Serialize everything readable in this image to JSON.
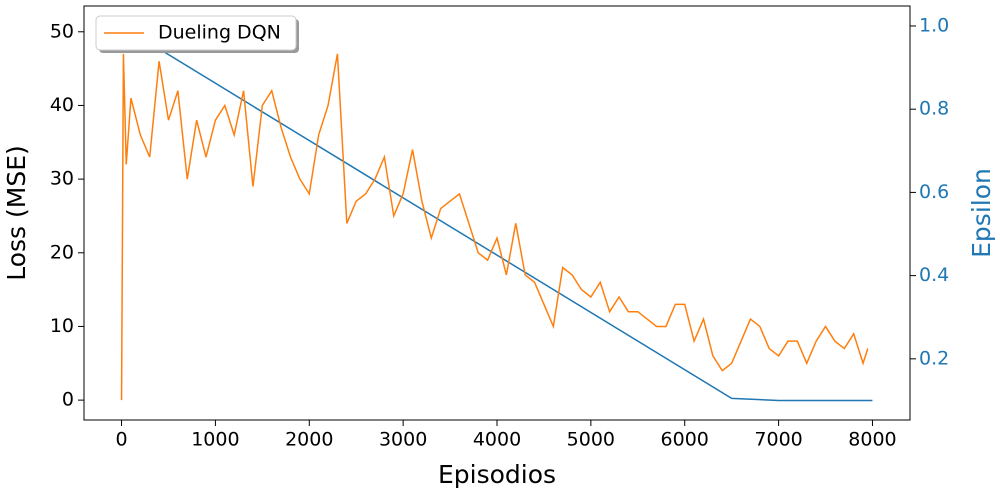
{
  "chart_data": {
    "type": "line",
    "xlabel": "Episodios",
    "ylabel": "Loss (MSE)",
    "y2label": "Epsilon",
    "xlim": [
      -400,
      8400
    ],
    "xticks": [
      0,
      1000,
      2000,
      3000,
      4000,
      5000,
      6000,
      7000,
      8000
    ],
    "ylim": [
      -2.7,
      53.5
    ],
    "yticks": [
      0,
      10,
      20,
      30,
      40,
      50
    ],
    "y2lim": [
      0.053,
      1.048
    ],
    "y2ticks": [
      0.2,
      0.4,
      0.6,
      0.8,
      {
        "value": 1,
        "label": "1.0"
      }
    ],
    "y2color": "#1f77b4",
    "legend": "upper left",
    "series": [
      {
        "name": "Dueling DQN",
        "color": "#ff7f0e",
        "x": [
          0,
          20,
          50,
          100,
          200,
          300,
          400,
          500,
          600,
          700,
          800,
          900,
          1000,
          1100,
          1200,
          1300,
          1400,
          1500,
          1600,
          1700,
          1800,
          1900,
          2000,
          2100,
          2200,
          2300,
          2400,
          2500,
          2600,
          2700,
          2800,
          2900,
          3000,
          3100,
          3200,
          3300,
          3400,
          3500,
          3600,
          3700,
          3800,
          3900,
          4000,
          4100,
          4200,
          4300,
          4400,
          4500,
          4600,
          4700,
          4800,
          4900,
          5000,
          5100,
          5200,
          5300,
          5400,
          5500,
          5600,
          5700,
          5800,
          5900,
          6000,
          6100,
          6200,
          6300,
          6400,
          6500,
          6600,
          6700,
          6800,
          6900,
          7000,
          7100,
          7200,
          7300,
          7400,
          7500,
          7600,
          7700,
          7800,
          7900,
          7950
        ],
        "values": [
          0,
          47,
          32,
          41,
          36,
          33,
          46,
          38,
          42,
          30,
          38,
          33,
          38,
          40,
          36,
          42,
          29,
          40,
          42,
          37,
          33,
          30,
          28,
          36,
          40,
          47,
          24,
          27,
          28,
          30,
          33,
          25,
          28,
          34,
          27,
          22,
          26,
          27,
          28,
          24,
          20,
          19,
          22,
          17,
          24,
          17,
          16,
          13,
          10,
          18,
          17,
          15,
          14,
          16,
          12,
          14,
          12,
          12,
          11,
          10,
          10,
          13,
          13,
          8,
          11,
          6,
          4,
          5,
          8,
          11,
          10,
          7,
          6,
          8,
          8,
          5,
          8,
          10,
          8,
          7,
          9,
          5,
          7
        ]
      },
      {
        "color": "#1f77b4",
        "axis": "y2",
        "x": [
          0,
          6500,
          7000,
          8000
        ],
        "values": [
          1.0,
          0.105,
          0.1,
          0.1
        ]
      }
    ]
  }
}
